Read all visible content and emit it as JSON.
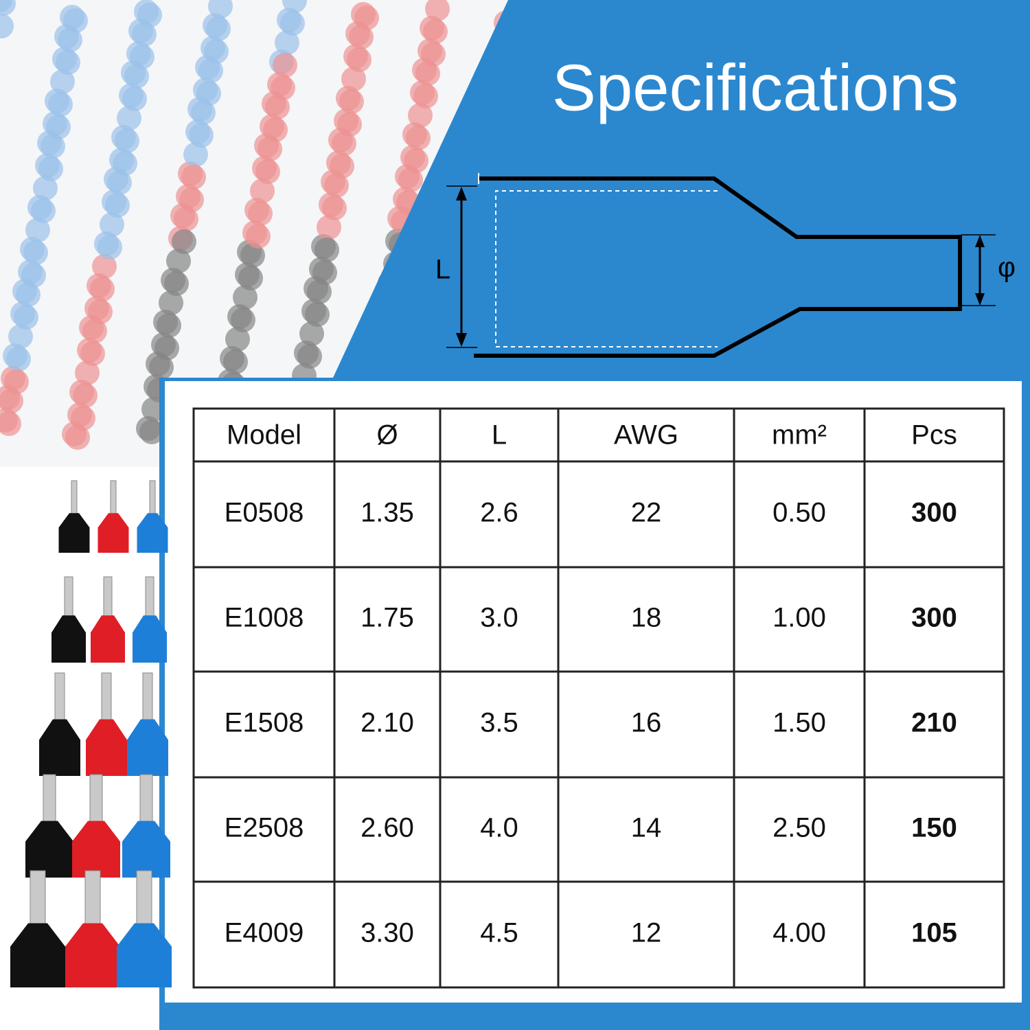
{
  "header": {
    "title": "Specifications"
  },
  "diagram": {
    "length_label": "L",
    "diameter_label": "φ"
  },
  "table": {
    "columns": [
      "Model",
      "Ø",
      "L",
      "AWG",
      "mm²",
      "Pcs"
    ],
    "rows": [
      [
        "E0508",
        "1.35",
        "2.6",
        "22",
        "0.50",
        "300"
      ],
      [
        "E1008",
        "1.75",
        "3.0",
        "18",
        "1.00",
        "300"
      ],
      [
        "E1508",
        "2.10",
        "3.5",
        "16",
        "1.50",
        "210"
      ],
      [
        "E2508",
        "2.60",
        "4.0",
        "14",
        "2.50",
        "150"
      ],
      [
        "E4009",
        "3.30",
        "4.5",
        "12",
        "4.00",
        "105"
      ]
    ]
  }
}
